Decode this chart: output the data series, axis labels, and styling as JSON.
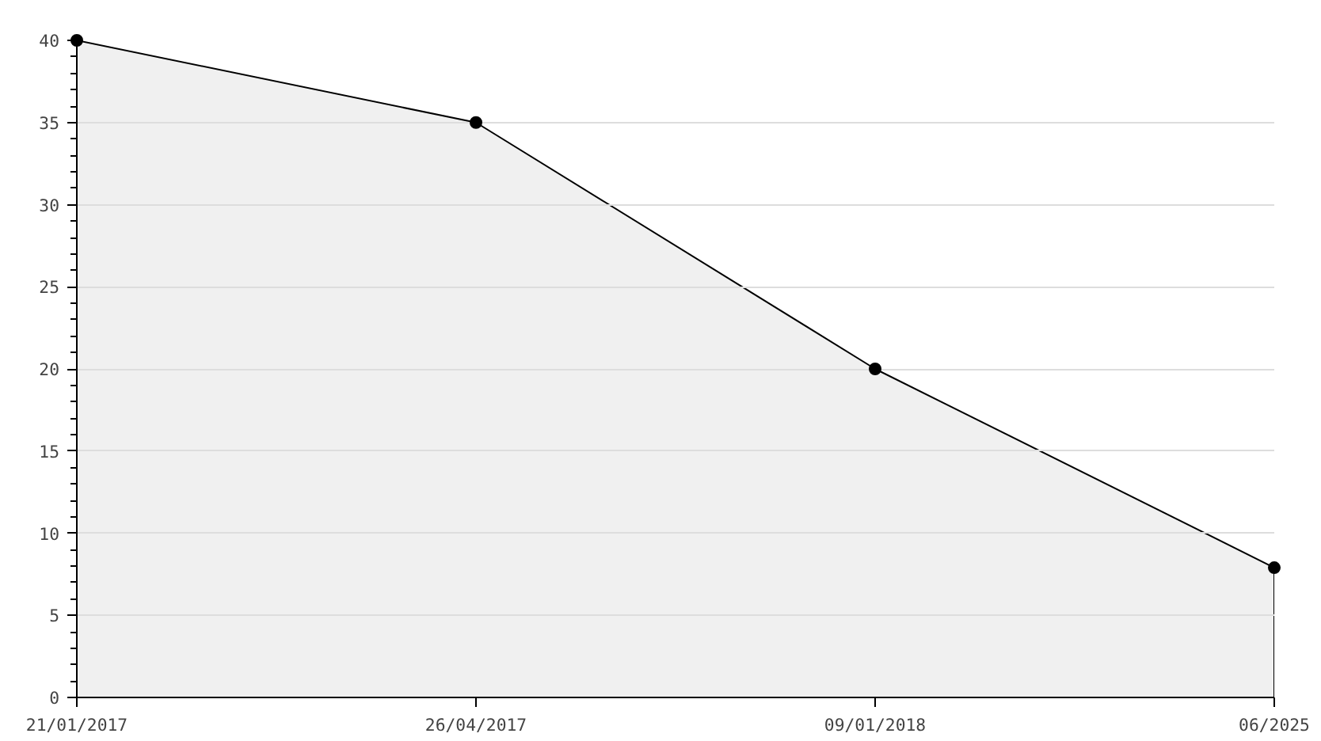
{
  "chart_data": {
    "type": "area",
    "categories": [
      "21/01/2017",
      "26/04/2017",
      "09/01/2018",
      "06/2025"
    ],
    "series": [
      {
        "color": "#000000",
        "values": [
          40,
          35,
          20,
          7.9
        ]
      }
    ],
    "ylim": [
      0,
      40
    ],
    "yticks": [
      0,
      5,
      10,
      15,
      20,
      25,
      30,
      35,
      40
    ],
    "grid": "y",
    "marker": "circle",
    "line_style": "solid"
  }
}
